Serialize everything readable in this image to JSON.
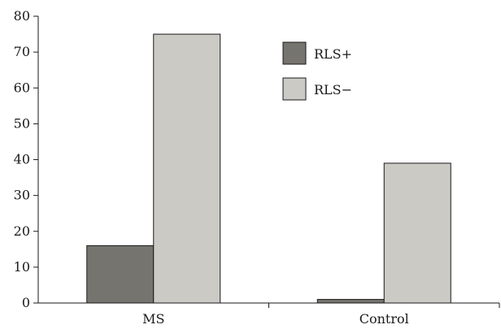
{
  "chart_data": {
    "type": "bar",
    "categories": [
      "MS",
      "Control"
    ],
    "series": [
      {
        "name": "RLS+",
        "values": [
          16,
          1
        ],
        "color": "#76746f"
      },
      {
        "name": "RLS−",
        "values": [
          75,
          39
        ],
        "color": "#cbcac5"
      }
    ],
    "ylim": [
      0,
      80
    ],
    "yticks": [
      "0",
      "10",
      "20",
      "30",
      "40",
      "50",
      "60",
      "70",
      "80"
    ],
    "title": "",
    "xlabel": "",
    "ylabel": "",
    "grid": false,
    "legend_position": "top-right"
  }
}
